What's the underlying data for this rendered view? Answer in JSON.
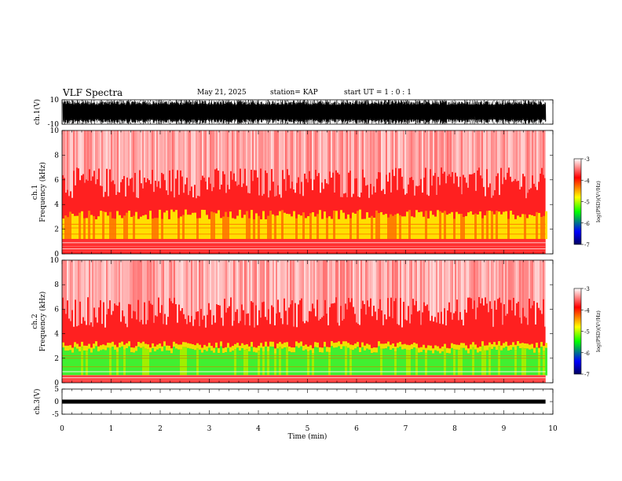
{
  "header": {
    "title": "VLF Spectra",
    "date": "May 21, 2025",
    "station": "station= KAP",
    "start_ut": "start UT =  1 : 0  : 1"
  },
  "chart_data": [
    {
      "type": "line",
      "name": "ch1-waveform",
      "ylabel": "ch.1(V)",
      "ylim": [
        -10,
        10
      ],
      "yticks": [
        "10",
        "-10"
      ],
      "xlim": [
        0,
        10
      ],
      "data_end_min": 9.85,
      "description_level": "dense oscillation mostly between about -10 and 10 V"
    },
    {
      "type": "heatmap",
      "name": "ch1-spectrogram",
      "ylabel": "ch.1\nFrequency (kHz)",
      "ylabel_lines": [
        "ch.1",
        "Frequency (kHz)"
      ],
      "ylim": [
        0,
        10
      ],
      "yticks": [
        "0",
        "2",
        "4",
        "6",
        "8",
        "10"
      ],
      "xlim": [
        0,
        10
      ],
      "bands_khz": {
        "yellow_low": 1.2,
        "yellow_high": 3.2,
        "red_top": 10
      },
      "colorbar": {
        "label": "log(PSD)(V²/Hz)",
        "range": [
          -7,
          -3
        ],
        "ticks": [
          "-3",
          "-4",
          "-5",
          "-6",
          "-7"
        ]
      }
    },
    {
      "type": "heatmap",
      "name": "ch2-spectrogram",
      "ylabel_lines": [
        "ch.2",
        "Frequency (kHz)"
      ],
      "ylim": [
        0,
        10
      ],
      "yticks": [
        "0",
        "2",
        "4",
        "6",
        "8",
        "10"
      ],
      "xlim": [
        0,
        10
      ],
      "bands_khz": {
        "green_low": 0.6,
        "green_high": 3.1,
        "red_top": 10
      },
      "colorbar": {
        "label": "log(PSD)(V²/Hz)",
        "range": [
          -7,
          -3
        ],
        "ticks": [
          "-3",
          "-4",
          "-5",
          "-6",
          "-7"
        ]
      }
    },
    {
      "type": "line",
      "name": "ch3-waveform",
      "ylabel": "ch.3(V)",
      "ylim": [
        -5,
        5
      ],
      "yticks": [
        "5",
        "0",
        "-5"
      ],
      "xlim": [
        0,
        10
      ],
      "data_end_min": 9.85,
      "band_v": [
        -0.8,
        0.8
      ]
    }
  ],
  "xaxis": {
    "label": "Time (min)",
    "ticks": [
      "0",
      "1",
      "2",
      "3",
      "4",
      "5",
      "6",
      "7",
      "8",
      "9",
      "10"
    ]
  },
  "colors": {
    "waveform": "#000000",
    "cb_top": "#ffffff",
    "cb_red": "#ff0000",
    "cb_yellow": "#ffff00",
    "cb_green": "#00ff00",
    "cb_blue": "#0000ff",
    "cb_bottom": "#000060"
  }
}
